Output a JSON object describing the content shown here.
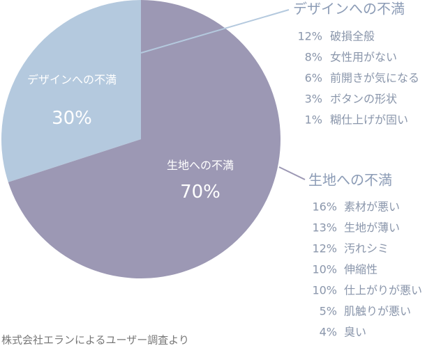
{
  "chart_data": {
    "type": "pie",
    "categories": [
      "デザインへの不満",
      "生地への不満"
    ],
    "values": [
      30,
      70
    ],
    "value_labels": [
      "30%",
      "70%"
    ],
    "colors": [
      "#b4c9de",
      "#9c98b4"
    ],
    "breakdowns": [
      {
        "value_labels": [
          "12%",
          "8%",
          "6%",
          "3%",
          "1%"
        ],
        "labels": [
          "破損全般",
          "女性用がない",
          "前開きが気になる",
          "ボタンの形状",
          "糊仕上げが固い"
        ]
      },
      {
        "value_labels": [
          "16%",
          "13%",
          "12%",
          "10%",
          "10%",
          "5%",
          "4%"
        ],
        "labels": [
          "素材が悪い",
          "生地が薄い",
          "汚れシミ",
          "伸縮性",
          "仕上がりが悪い",
          "肌触りが悪い",
          "臭い"
        ]
      }
    ],
    "source": "株式会社エランによるユーザー調査より"
  }
}
